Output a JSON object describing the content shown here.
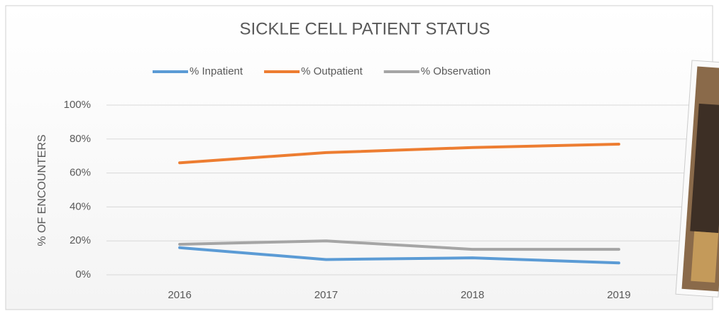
{
  "chart_data": {
    "type": "line",
    "title": "SICKLE CELL PATIENT STATUS",
    "y_label": "% OF ENCOUNTERS",
    "categories": [
      "2016",
      "2017",
      "2018",
      "2019"
    ],
    "series": [
      {
        "name": "% Inpatient",
        "color": "#5b9bd5",
        "values": [
          16,
          9,
          10,
          7
        ]
      },
      {
        "name": "% Outpatient",
        "color": "#ed7d31",
        "values": [
          66,
          72,
          75,
          77
        ]
      },
      {
        "name": "% Observation",
        "color": "#a5a5a5",
        "values": [
          18,
          20,
          15,
          15
        ]
      }
    ],
    "ylim": [
      0,
      100
    ],
    "yticks": [
      {
        "value": 0,
        "label": "0%"
      },
      {
        "value": 20,
        "label": "20%"
      },
      {
        "value": 40,
        "label": "40%"
      },
      {
        "value": 60,
        "label": "60%"
      },
      {
        "value": 80,
        "label": "80%"
      },
      {
        "value": 100,
        "label": "100%"
      }
    ],
    "grid": true,
    "legend": "top"
  }
}
